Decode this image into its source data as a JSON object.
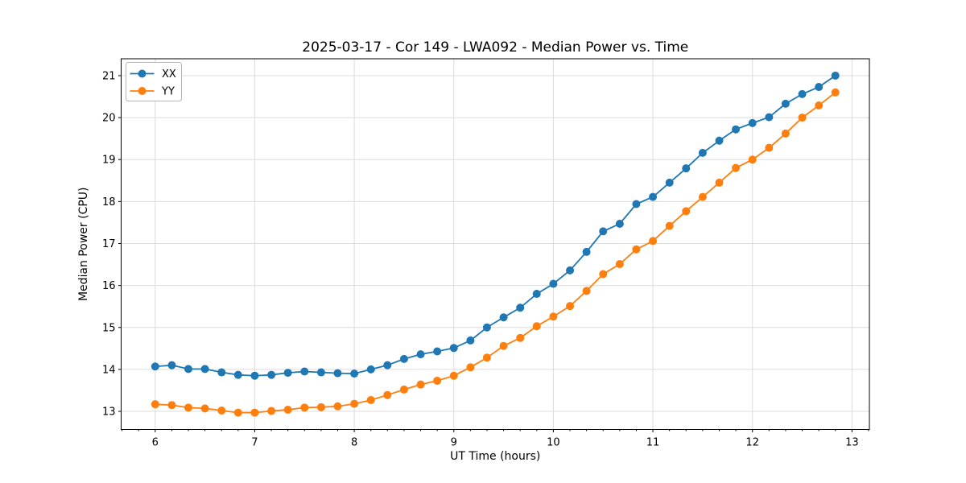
{
  "chart_data": {
    "type": "line",
    "title": "2025-03-17 - Cor 149 - LWA092 - Median Power vs. Time",
    "xlabel": "UT Time (hours)",
    "ylabel": "Median Power (CPU)",
    "xlim": [
      5.658,
      13.175
    ],
    "ylim": [
      12.569,
      21.402
    ],
    "xticks": [
      6,
      7,
      8,
      9,
      10,
      11,
      12,
      13
    ],
    "yticks": [
      13,
      14,
      15,
      16,
      17,
      18,
      19,
      20,
      21
    ],
    "x_minor_step_hours": 0.1667,
    "grid": true,
    "legend_position": "upper-left",
    "colors": {
      "series_xx": "#1f77b4",
      "series_yy": "#ff7f0e",
      "grid": "#dcdcdc",
      "spine": "#000000",
      "legend_border": "#b3b3b3"
    },
    "x": [
      6.0,
      6.167,
      6.333,
      6.5,
      6.667,
      6.833,
      7.0,
      7.167,
      7.333,
      7.5,
      7.667,
      7.833,
      8.0,
      8.167,
      8.333,
      8.5,
      8.667,
      8.833,
      9.0,
      9.167,
      9.333,
      9.5,
      9.667,
      9.833,
      10.0,
      10.167,
      10.333,
      10.5,
      10.667,
      10.833,
      11.0,
      11.167,
      11.333,
      11.5,
      11.667,
      11.833,
      12.0,
      12.167,
      12.333,
      12.5,
      12.667,
      12.833
    ],
    "series": [
      {
        "name": "XX",
        "color": "#1f77b4",
        "values": [
          14.07,
          14.1,
          14.01,
          14.01,
          13.93,
          13.87,
          13.85,
          13.87,
          13.92,
          13.95,
          13.93,
          13.91,
          13.9,
          14.0,
          14.1,
          14.25,
          14.36,
          14.43,
          14.51,
          14.69,
          15.0,
          15.24,
          15.47,
          15.8,
          16.04,
          16.36,
          16.8,
          17.29,
          17.47,
          17.94,
          18.11,
          18.45,
          18.79,
          19.16,
          19.45,
          19.72,
          19.87,
          20.01,
          20.33,
          20.56,
          20.73,
          21.0
        ]
      },
      {
        "name": "YY",
        "color": "#ff7f0e",
        "values": [
          13.17,
          13.15,
          13.09,
          13.07,
          13.02,
          12.97,
          12.97,
          13.01,
          13.04,
          13.09,
          13.1,
          13.12,
          13.18,
          13.27,
          13.39,
          13.52,
          13.64,
          13.73,
          13.85,
          14.05,
          14.28,
          14.56,
          14.75,
          15.03,
          15.26,
          15.51,
          15.87,
          16.27,
          16.51,
          16.86,
          17.06,
          17.42,
          17.77,
          18.11,
          18.45,
          18.8,
          19.0,
          19.28,
          19.62,
          20.0,
          20.29,
          20.6
        ]
      }
    ]
  }
}
